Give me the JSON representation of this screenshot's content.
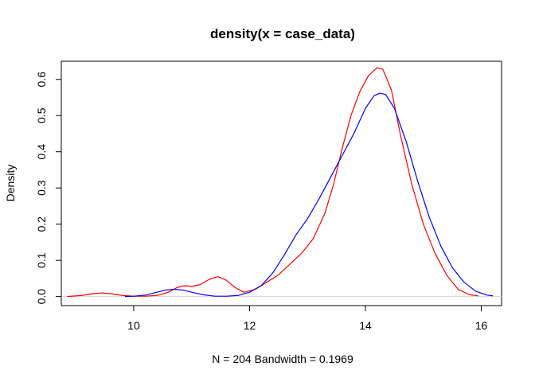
{
  "chart_data": {
    "type": "line",
    "title": "density(x = case_data)",
    "xlabel": "N = 204   Bandwidth = 0.1969",
    "ylabel": "Density",
    "xlim": [
      8.75,
      16.35
    ],
    "ylim": [
      -0.025,
      0.65
    ],
    "x_ticks": [
      10,
      12,
      14,
      16
    ],
    "y_ticks": [
      0.0,
      0.1,
      0.2,
      0.3,
      0.4,
      0.5,
      0.6
    ],
    "x_tick_labels": [
      "10",
      "12",
      "14",
      "16"
    ],
    "y_tick_labels": [
      "0.0",
      "0.1",
      "0.2",
      "0.3",
      "0.4",
      "0.5",
      "0.6"
    ],
    "grid": false,
    "zero_line": true,
    "series": [
      {
        "color": "#ff0000",
        "x": [
          8.85,
          9.1,
          9.3,
          9.45,
          9.6,
          9.8,
          10.0,
          10.2,
          10.4,
          10.6,
          10.75,
          10.88,
          11.0,
          11.15,
          11.3,
          11.45,
          11.6,
          11.75,
          11.9,
          12.1,
          12.3,
          12.5,
          12.7,
          12.9,
          13.1,
          13.3,
          13.45,
          13.6,
          13.75,
          13.9,
          14.05,
          14.2,
          14.3,
          14.45,
          14.6,
          14.8,
          15.0,
          15.2,
          15.4,
          15.6,
          15.8,
          15.95
        ],
        "y": [
          0.0,
          0.003,
          0.008,
          0.01,
          0.008,
          0.003,
          0.001,
          0.001,
          0.003,
          0.012,
          0.025,
          0.03,
          0.028,
          0.033,
          0.047,
          0.055,
          0.045,
          0.025,
          0.012,
          0.02,
          0.04,
          0.06,
          0.09,
          0.12,
          0.16,
          0.23,
          0.31,
          0.41,
          0.5,
          0.565,
          0.61,
          0.632,
          0.628,
          0.57,
          0.45,
          0.31,
          0.2,
          0.12,
          0.06,
          0.02,
          0.005,
          0.002
        ]
      },
      {
        "color": "#0000ff",
        "x": [
          9.85,
          10.0,
          10.2,
          10.4,
          10.55,
          10.7,
          10.85,
          11.0,
          11.2,
          11.4,
          11.6,
          11.8,
          12.0,
          12.2,
          12.4,
          12.6,
          12.8,
          13.0,
          13.2,
          13.4,
          13.6,
          13.8,
          14.0,
          14.15,
          14.25,
          14.35,
          14.5,
          14.7,
          14.9,
          15.1,
          15.3,
          15.5,
          15.7,
          15.9,
          16.1,
          16.2
        ],
        "y": [
          0.0,
          0.001,
          0.004,
          0.012,
          0.018,
          0.02,
          0.018,
          0.012,
          0.005,
          0.001,
          0.001,
          0.003,
          0.012,
          0.03,
          0.065,
          0.115,
          0.17,
          0.215,
          0.27,
          0.33,
          0.39,
          0.45,
          0.52,
          0.555,
          0.562,
          0.558,
          0.52,
          0.43,
          0.32,
          0.22,
          0.14,
          0.08,
          0.04,
          0.015,
          0.004,
          0.002
        ]
      }
    ]
  }
}
